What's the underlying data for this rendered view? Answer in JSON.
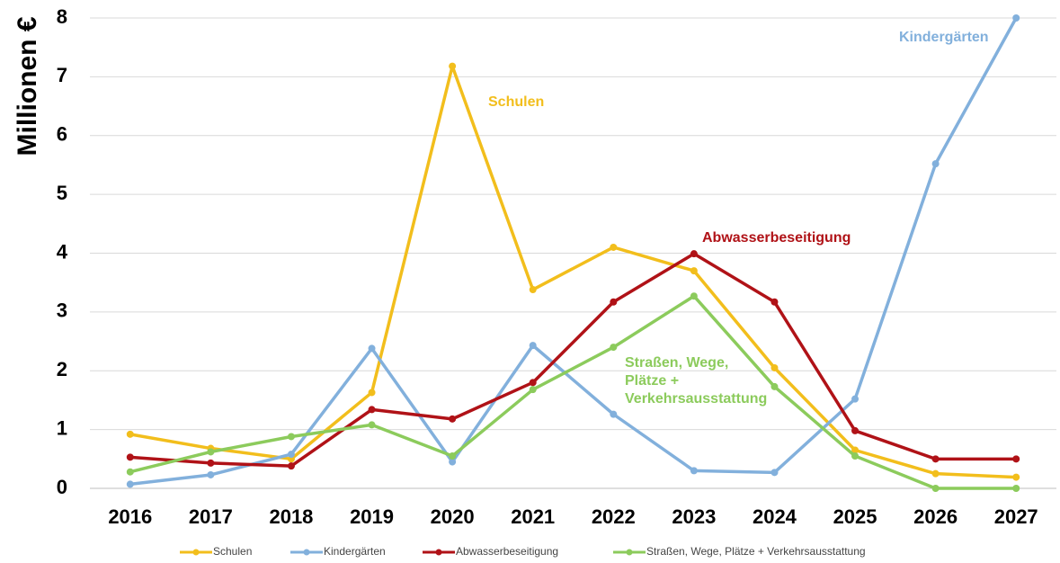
{
  "chart_data": {
    "type": "line",
    "ylabel": "Millionen €",
    "xlabel": "",
    "ylim": [
      0,
      8
    ],
    "yticks": [
      "0",
      "1",
      "2",
      "3",
      "4",
      "5",
      "6",
      "7",
      "8"
    ],
    "x": [
      "2016",
      "2017",
      "2018",
      "2019",
      "2020",
      "2021",
      "2022",
      "2023",
      "2024",
      "2025",
      "2026",
      "2027"
    ],
    "grid": true,
    "legend_position": "bottom",
    "series": [
      {
        "name": "Schulen",
        "color": "#F2BE1C",
        "values": [
          0.92,
          0.68,
          0.5,
          1.63,
          7.18,
          3.38,
          4.1,
          3.7,
          2.05,
          0.65,
          0.25,
          0.19
        ]
      },
      {
        "name": "Kindergärten",
        "color": "#82B0DC",
        "values": [
          0.07,
          0.23,
          0.58,
          2.38,
          0.45,
          2.43,
          1.26,
          0.3,
          0.27,
          1.52,
          5.52,
          8.0
        ]
      },
      {
        "name": "Abwasserbeseitigung",
        "color": "#B01217",
        "values": [
          0.53,
          0.43,
          0.38,
          1.34,
          1.18,
          1.8,
          3.17,
          3.99,
          3.17,
          0.98,
          0.5,
          0.5
        ]
      },
      {
        "name": "Straßen, Wege, Plätze + Verkehrsausstattung",
        "color": "#8CCB5C",
        "values": [
          0.28,
          0.62,
          0.88,
          1.08,
          0.55,
          1.68,
          2.4,
          3.27,
          1.73,
          0.55,
          0.0,
          0.0
        ]
      }
    ],
    "annotations": [
      {
        "text": [
          "Schulen"
        ],
        "color": "#F2BE1C"
      },
      {
        "text": [
          "Kindergärten"
        ],
        "color": "#82B0DC"
      },
      {
        "text": [
          "Abwasserbeseitigung"
        ],
        "color": "#B01217"
      },
      {
        "text": [
          "Straßen, Wege,",
          "Plätze +",
          "Verkehrsausstattung"
        ],
        "color": "#8CCB5C"
      }
    ]
  }
}
